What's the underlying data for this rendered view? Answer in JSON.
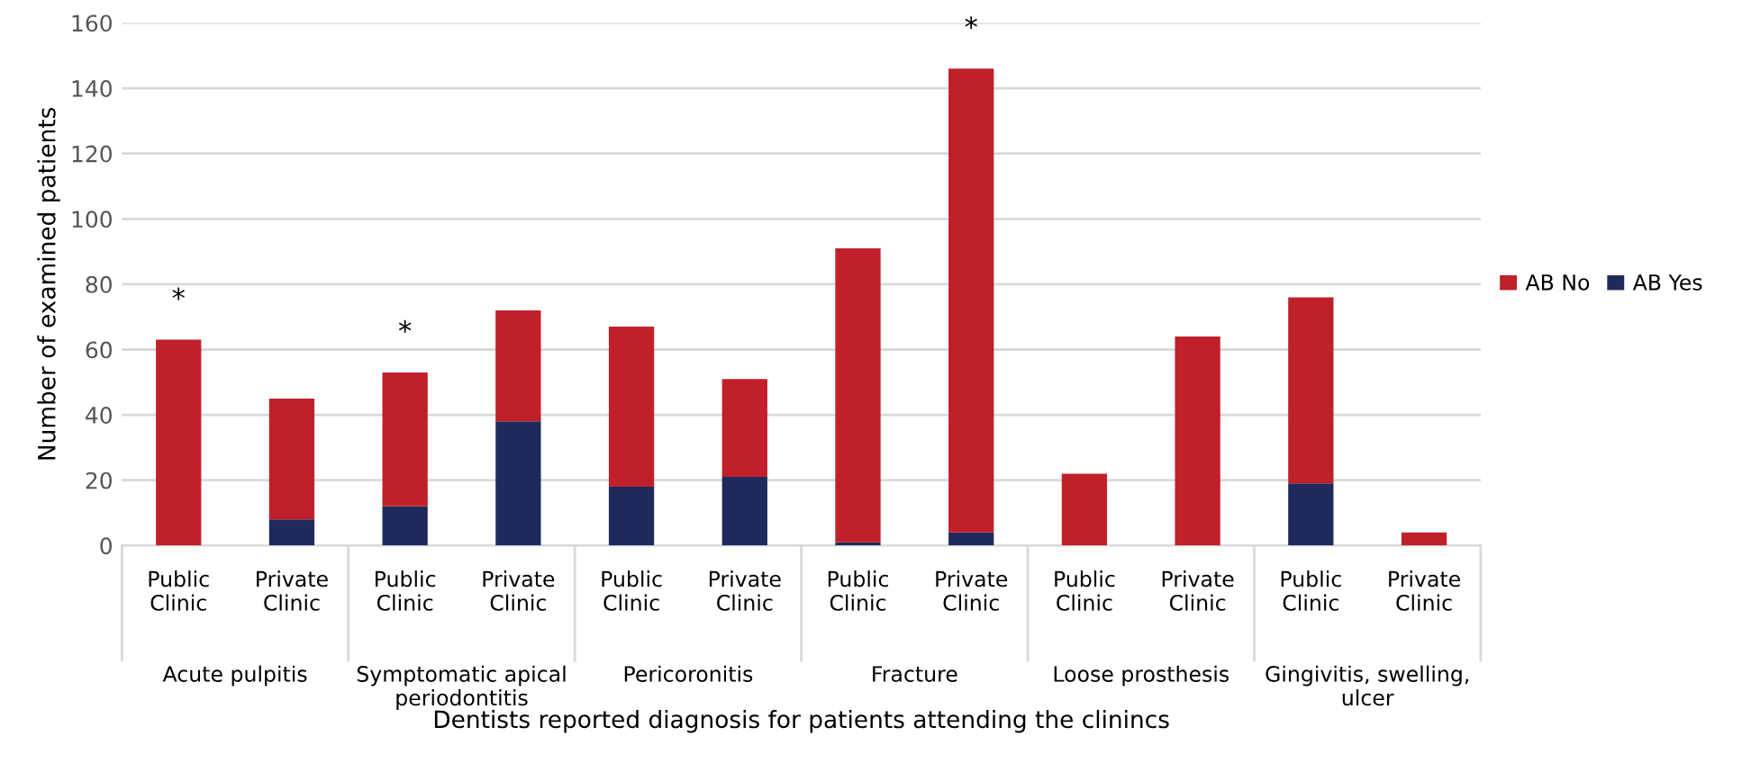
{
  "chart_data": {
    "type": "bar",
    "stacked": true,
    "categories": [
      "Public Clinic",
      "Private Clinic",
      "Public Clinic",
      "Private Clinic",
      "Public Clinic",
      "Private Clinic",
      "Public Clinic",
      "Private Clinic",
      "Public Clinic",
      "Private Clinic",
      "Public Clinic",
      "Private Clinic"
    ],
    "series": [
      {
        "name": "AB Yes",
        "color": "#1f2a5c",
        "values": [
          0,
          8,
          12,
          38,
          18,
          21,
          1,
          4,
          0,
          0,
          19,
          0
        ]
      },
      {
        "name": "AB No",
        "color": "#c0202a",
        "values": [
          63,
          37,
          41,
          34,
          49,
          30,
          90,
          142,
          22,
          64,
          57,
          4
        ],
        "value_labels": [
          "*",
          null,
          "*",
          null,
          null,
          null,
          null,
          "*",
          null,
          null,
          null,
          null
        ]
      }
    ],
    "xlabel": "Dentists reported diagnosis for patients attending the clinincs",
    "ylabel": "Number of examined patients",
    "annotations": [
      "Acute pulpitis",
      "Symptomatic apical\nperiodontitis",
      "Pericoronitis",
      "Fracture",
      "Loose prosthesis",
      "Gingivitis, swelling,\nulcer"
    ],
    "ylim": [
      0,
      160
    ],
    "yticks": [
      0,
      20,
      40,
      60,
      80,
      100,
      120,
      140,
      160
    ],
    "grid": "y",
    "legend": "right"
  }
}
